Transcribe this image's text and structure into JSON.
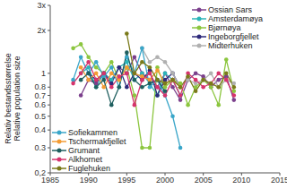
{
  "chart_data": {
    "type": "line",
    "y_label": [
      "Relativ bestandsstørrelse",
      "Relative population size"
    ],
    "log": "y",
    "legend": "upper right",
    "marker": "circle",
    "xlim": [
      1985,
      2015
    ],
    "xticks": [
      1985,
      1990,
      1995,
      2000,
      2005,
      2010,
      2015
    ],
    "ylim": [
      0.2,
      3
    ],
    "yticks": [
      {
        "value": 0.2,
        "label": "0,2"
      },
      0.3,
      0.4,
      0.5,
      0.6,
      0.7,
      0.8,
      1,
      {
        "value": 2,
        "label": "2x"
      },
      {
        "value": 3,
        "label": "3x"
      }
    ],
    "x": [
      1988,
      1989,
      1990,
      1991,
      1992,
      1993,
      1994,
      1995,
      1996,
      1997,
      1998,
      1999,
      2000,
      2001,
      2002,
      2003,
      2004,
      2005,
      2006,
      2007,
      2008,
      2009,
      2010
    ],
    "series": [
      {
        "name": "Ossian Sars",
        "color": "#7b3f8c",
        "values": [
          null,
          0.7,
          0.9,
          0.85,
          1.0,
          0.9,
          1.1,
          1.0,
          1.3,
          1.0,
          0.9,
          0.8,
          1.0,
          0.8,
          0.65,
          0.9,
          1.0,
          0.95,
          0.8,
          0.9,
          0.95,
          0.65,
          null
        ]
      },
      {
        "name": "Amsterdamøya",
        "color": "#2bb5b8",
        "values": [
          null,
          1.0,
          1.1,
          0.8,
          1.0,
          0.9,
          1.1,
          1.2,
          0.9,
          1.0,
          0.85,
          0.7,
          1.0,
          0.9,
          0.7,
          null,
          null,
          null,
          null,
          null,
          null,
          null,
          null
        ]
      },
      {
        "name": "Bjørnøya",
        "color": "#8cc63f",
        "values": [
          1.5,
          1.6,
          1.3,
          1.1,
          1.0,
          1.2,
          0.9,
          1.1,
          0.7,
          0.3,
          0.3,
          1.1,
          0.8,
          0.9,
          0.85,
          0.6,
          0.8,
          0.9,
          0.8,
          0.6,
          1.25,
          0.75,
          null
        ]
      },
      {
        "name": "Ingeborgfjellet",
        "color": "#2e2a7a",
        "values": [
          null,
          null,
          1.0,
          0.9,
          1.0,
          0.85,
          1.1,
          0.8,
          1.0,
          0.9,
          1.05,
          0.7,
          0.9,
          1.0,
          0.8,
          null,
          null,
          null,
          null,
          null,
          null,
          null,
          null
        ]
      },
      {
        "name": "Midterhuken",
        "color": "#b0b0b0",
        "values": [
          null,
          null,
          null,
          null,
          null,
          null,
          null,
          null,
          null,
          1.5,
          1.2,
          1.3,
          1.2,
          1.0,
          0.8,
          0.9,
          0.85,
          0.9,
          1.0,
          0.8,
          0.9,
          0.85,
          null
        ]
      },
      {
        "name": "Sofiekammen",
        "color": "#3aa6c9",
        "values": [
          0.9,
          1.3,
          1.0,
          1.2,
          0.95,
          1.1,
          0.8,
          1.3,
          1.0,
          1.5,
          0.8,
          0.9,
          0.7,
          0.5,
          0.3,
          null,
          null,
          null,
          null,
          null,
          null,
          null,
          null
        ]
      },
      {
        "name": "Tschermakfjellet",
        "color": "#f39c34",
        "values": [
          null,
          1.1,
          0.9,
          1.0,
          0.8,
          1.0,
          0.9,
          1.1,
          1.0,
          0.95,
          0.9,
          1.05,
          0.85,
          0.9,
          0.8,
          null,
          null,
          null,
          null,
          null,
          null,
          null,
          null
        ]
      },
      {
        "name": "Grumant",
        "color": "#1f5f5f",
        "values": [
          null,
          0.9,
          1.0,
          0.8,
          0.9,
          0.6,
          0.8,
          1.4,
          0.9,
          0.8,
          0.85,
          0.9,
          0.75,
          null,
          null,
          null,
          null,
          null,
          null,
          null,
          null,
          null,
          null
        ]
      },
      {
        "name": "Alkhornet",
        "color": "#d6336c",
        "values": [
          0.85,
          1.0,
          1.2,
          0.9,
          1.0,
          0.8,
          0.95,
          1.0,
          0.6,
          0.9,
          1.0,
          0.8,
          0.7,
          0.9,
          0.7,
          1.0,
          0.9,
          0.8,
          0.85,
          1.0,
          0.9,
          0.7,
          null
        ]
      },
      {
        "name": "Fuglehuken",
        "color": "#7a7a1a",
        "values": [
          null,
          null,
          null,
          null,
          null,
          null,
          null,
          1.9,
          1.0,
          1.2,
          1.1,
          0.9,
          0.85,
          0.9,
          0.8,
          0.95,
          0.75,
          0.9,
          0.85,
          0.8,
          1.0,
          0.8,
          null
        ]
      }
    ]
  }
}
